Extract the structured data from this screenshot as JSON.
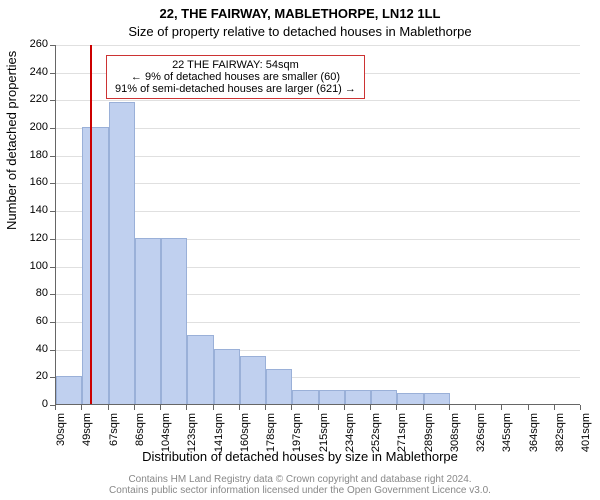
{
  "title_line1": "22, THE FAIRWAY, MABLETHORPE, LN12 1LL",
  "title_line2": "Size of property relative to detached houses in Mablethorpe",
  "y_label": "Number of detached properties",
  "x_label": "Distribution of detached houses by size in Mablethorpe",
  "footer_line1": "Contains HM Land Registry data © Crown copyright and database right 2024.",
  "footer_line2": "Contains public sector information licensed under the Open Government Licence v3.0.",
  "chart": {
    "type": "histogram",
    "ylim": [
      0,
      260
    ],
    "ytick_step": 20,
    "y_ticks": [
      0,
      20,
      40,
      60,
      80,
      100,
      120,
      140,
      160,
      180,
      200,
      220,
      240,
      260
    ],
    "x_ticks": [
      "30sqm",
      "49sqm",
      "67sqm",
      "86sqm",
      "104sqm",
      "123sqm",
      "141sqm",
      "160sqm",
      "178sqm",
      "197sqm",
      "215sqm",
      "234sqm",
      "252sqm",
      "271sqm",
      "289sqm",
      "308sqm",
      "326sqm",
      "345sqm",
      "364sqm",
      "382sqm",
      "401sqm"
    ],
    "tick_fontsize": 11,
    "label_fontsize": 13,
    "title_fontsize": 13,
    "bar_values": [
      20,
      200,
      218,
      120,
      120,
      50,
      40,
      35,
      25,
      10,
      10,
      10,
      10,
      8,
      8,
      0,
      0,
      0,
      0,
      0
    ],
    "bar_color": "#c0d0ef",
    "bar_border": "#9ab0d8",
    "grid_color": "#e0e0e0",
    "axis_color": "#666666",
    "background_color": "#ffffff",
    "reference_line_x": 54,
    "reference_line_color": "#cc0000",
    "annotation": {
      "line1": "22 THE FAIRWAY: 54sqm",
      "line2": "← 9% of detached houses are smaller (60)",
      "line3": "91% of semi-detached houses are larger (621) →",
      "border_color": "#cc3333",
      "fontsize": 11
    },
    "footer_color": "#888888",
    "footer_fontsize": 10
  }
}
